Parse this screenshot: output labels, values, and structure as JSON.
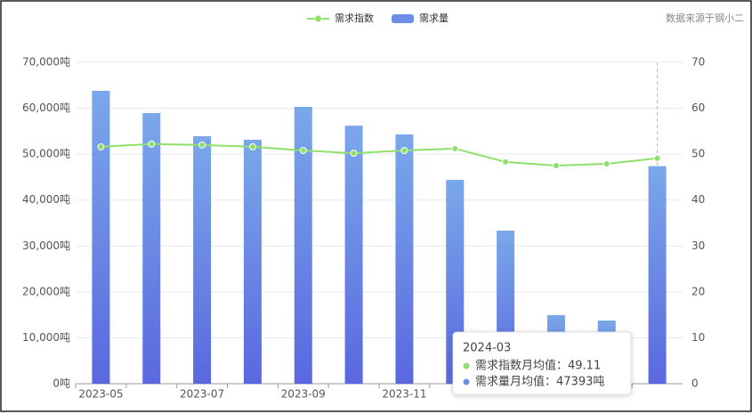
{
  "chart_data": {
    "type": "bar-line",
    "source": "数据来源于钢小二",
    "categories": [
      "2023-05",
      null,
      "2023-07",
      null,
      "2023-09",
      null,
      "2023-11",
      null,
      null,
      null,
      null,
      null
    ],
    "series": [
      {
        "name": "需求指数",
        "type": "line",
        "axis": "y2",
        "color": "#8ee06b",
        "values": [
          51.6,
          52.2,
          52.0,
          51.6,
          50.8,
          50.2,
          50.8,
          51.2,
          48.3,
          47.5,
          47.9,
          49.11
        ]
      },
      {
        "name": "需求量",
        "type": "bar",
        "color": "#6f8de8",
        "values": [
          63800,
          58950,
          53900,
          53130,
          60300,
          56200,
          54300,
          44400,
          33350,
          14930,
          13770,
          47393
        ]
      }
    ],
    "ylim": [
      0,
      70000
    ],
    "yticks": [
      {
        "value": 0,
        "label": "0吨"
      },
      {
        "value": 10000,
        "label": "10,000吨"
      },
      {
        "value": 20000,
        "label": "20,000吨"
      },
      {
        "value": 30000,
        "label": "30,000吨"
      },
      {
        "value": 40000,
        "label": "40,000吨"
      },
      {
        "value": 50000,
        "label": "50,000吨"
      },
      {
        "value": 60000,
        "label": "60,000吨"
      },
      {
        "value": 70000,
        "label": "70,000吨"
      }
    ],
    "y2lim": [
      0,
      70
    ],
    "y2ticks": [
      0,
      10,
      20,
      30,
      40,
      50,
      60,
      70
    ],
    "grid": true,
    "tooltip": {
      "title": "2024-03",
      "rows": [
        "需求指数月均值：49.11",
        "需求量月均值：47393吨"
      ]
    }
  }
}
